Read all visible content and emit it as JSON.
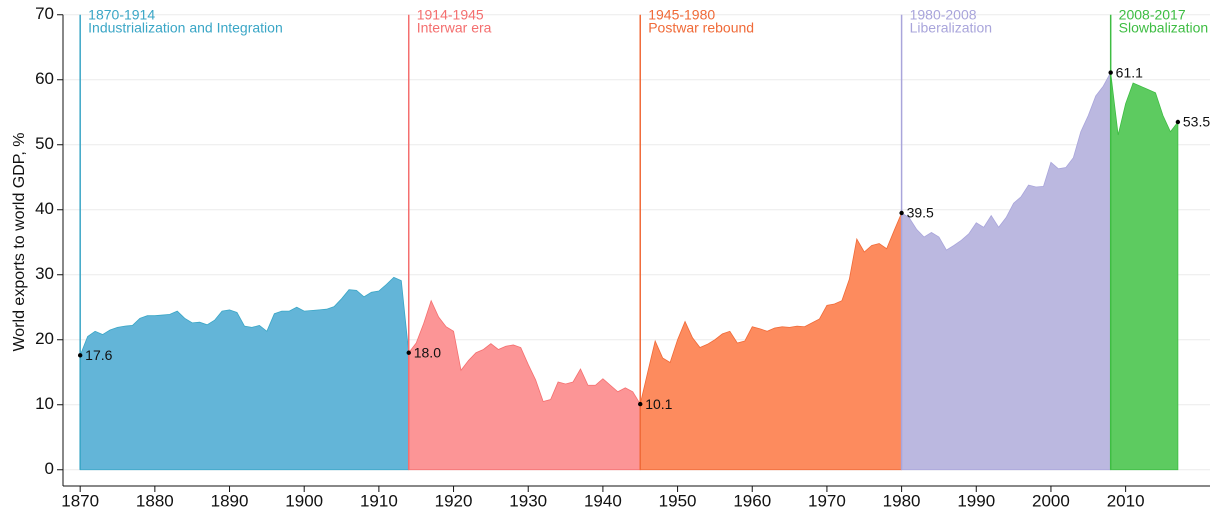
{
  "chart_data": {
    "type": "area",
    "y_label": "World exports to world GDP, %",
    "xlim": [
      1867.7,
      2021.3
    ],
    "ylim": [
      -2.5,
      70
    ],
    "xticks": [
      1870,
      1880,
      1890,
      1900,
      1910,
      1920,
      1930,
      1940,
      1950,
      1960,
      1970,
      1980,
      1990,
      2000,
      2010
    ],
    "yticks": [
      0,
      10,
      20,
      30,
      40,
      50,
      60,
      70
    ],
    "grid": true,
    "series": [
      {
        "name": "1870-1914",
        "description": "Industrialization and Integration",
        "color": "#63b5d8",
        "line_color": "#3aa6c6",
        "x": [
          1870,
          1871,
          1872,
          1873,
          1874,
          1875,
          1876,
          1877,
          1878,
          1879,
          1880,
          1881,
          1882,
          1883,
          1884,
          1885,
          1886,
          1887,
          1888,
          1889,
          1890,
          1891,
          1892,
          1893,
          1894,
          1895,
          1896,
          1897,
          1898,
          1899,
          1900,
          1901,
          1902,
          1903,
          1904,
          1905,
          1906,
          1907,
          1908,
          1909,
          1910,
          1911,
          1912,
          1913,
          1914
        ],
        "values": [
          17.6,
          20.5,
          21.3,
          20.8,
          21.5,
          21.9,
          22.1,
          22.2,
          23.3,
          23.7,
          23.7,
          23.8,
          23.9,
          24.4,
          23.3,
          22.6,
          22.7,
          22.3,
          23.0,
          24.4,
          24.6,
          24.2,
          22.1,
          21.9,
          22.2,
          21.3,
          24.0,
          24.4,
          24.4,
          25.0,
          24.4,
          24.5,
          24.6,
          24.7,
          25.1,
          26.3,
          27.7,
          27.6,
          26.6,
          27.3,
          27.5,
          28.5,
          29.6,
          29.1,
          18.0
        ]
      },
      {
        "name": "1914-1945",
        "description": "Interwar era",
        "color": "#fc9596",
        "line_color": "#f46f6f",
        "x": [
          1914,
          1915,
          1916,
          1917,
          1918,
          1919,
          1920,
          1921,
          1922,
          1923,
          1924,
          1925,
          1926,
          1927,
          1928,
          1929,
          1930,
          1931,
          1932,
          1933,
          1934,
          1935,
          1936,
          1937,
          1938,
          1939,
          1940,
          1941,
          1942,
          1943,
          1944,
          1945
        ],
        "values": [
          18.0,
          19.5,
          22.5,
          26.0,
          23.5,
          22.0,
          21.3,
          15.3,
          16.8,
          18.0,
          18.5,
          19.4,
          18.5,
          19.0,
          19.2,
          18.8,
          16.2,
          13.8,
          10.5,
          10.8,
          13.5,
          13.2,
          13.5,
          15.5,
          13.0,
          13.0,
          14.0,
          13.0,
          12.0,
          12.6,
          12.0,
          10.1
        ]
      },
      {
        "name": "1945-1980",
        "description": "Postwar rebound",
        "color": "#fd8b5e",
        "line_color": "#f06a38",
        "x": [
          1945,
          1946,
          1947,
          1948,
          1949,
          1950,
          1951,
          1952,
          1953,
          1954,
          1955,
          1956,
          1957,
          1958,
          1959,
          1960,
          1961,
          1962,
          1963,
          1964,
          1965,
          1966,
          1967,
          1968,
          1969,
          1970,
          1971,
          1972,
          1973,
          1974,
          1975,
          1976,
          1977,
          1978,
          1979,
          1980
        ],
        "values": [
          10.1,
          15.0,
          19.8,
          17.2,
          16.5,
          20.0,
          22.8,
          20.3,
          18.8,
          19.3,
          20.0,
          20.9,
          21.3,
          19.5,
          19.8,
          22.0,
          21.7,
          21.3,
          21.8,
          22.0,
          21.9,
          22.1,
          22.0,
          22.6,
          23.2,
          25.3,
          25.5,
          26.0,
          29.3,
          35.5,
          33.5,
          34.5,
          34.8,
          34.0,
          36.8,
          39.5
        ]
      },
      {
        "name": "1980-2008",
        "description": "Liberalization",
        "color": "#bbb8e0",
        "line_color": "#a9a5db",
        "x": [
          1980,
          1981,
          1982,
          1983,
          1984,
          1985,
          1986,
          1987,
          1988,
          1989,
          1990,
          1991,
          1992,
          1993,
          1994,
          1995,
          1996,
          1997,
          1998,
          1999,
          2000,
          2001,
          2002,
          2003,
          2004,
          2005,
          2006,
          2007,
          2008
        ],
        "values": [
          39.5,
          38.8,
          37.0,
          35.8,
          36.5,
          35.8,
          33.8,
          34.5,
          35.3,
          36.3,
          38.0,
          37.3,
          39.1,
          37.3,
          38.8,
          41.0,
          42.0,
          43.8,
          43.5,
          43.6,
          47.3,
          46.3,
          46.5,
          48.0,
          52.0,
          54.5,
          57.5,
          59.0,
          61.1
        ]
      },
      {
        "name": "2008-2017",
        "description": "Slowbalization",
        "color": "#5dcb60",
        "line_color": "#3ebd43",
        "x": [
          2008,
          2009,
          2010,
          2011,
          2012,
          2013,
          2014,
          2015,
          2016,
          2017
        ],
        "values": [
          61.1,
          51.5,
          56.3,
          59.5,
          59.0,
          58.5,
          58.0,
          54.5,
          52.0,
          53.5
        ]
      }
    ],
    "points": {
      "x": [
        1870,
        1914,
        1945,
        1980,
        2008,
        2017
      ],
      "values": [
        17.6,
        18.0,
        10.1,
        39.5,
        61.1,
        53.5
      ],
      "value_labels": [
        "17.6",
        "18.0",
        "10.1",
        "39.5",
        "61.1",
        "53.5"
      ]
    }
  }
}
